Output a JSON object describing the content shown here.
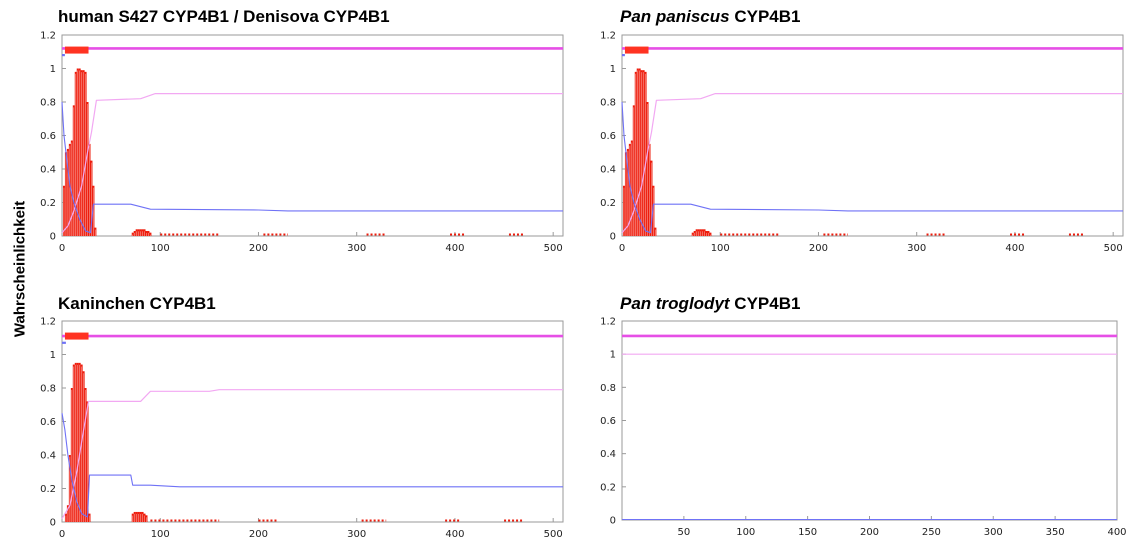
{
  "ylabel": "Wahrscheinlichkeit",
  "colors": {
    "frame": "#9a9a9a",
    "bars": "#ee1c0c",
    "bar_stripe": "#ffffff",
    "marker": "#ff3322",
    "blue": "#6f72f6",
    "pink_thick": "#e64fe6",
    "pink_thin": "#f2a8f2"
  },
  "chart_data": [
    {
      "type": "line",
      "title_main": "human S427 CYP4B1 / Denisova CYP4B1",
      "title_italic": "",
      "title_suffix": "",
      "xlim": [
        0,
        510
      ],
      "ylim": [
        0,
        1.2
      ],
      "xticks": [
        "0",
        "100",
        "200",
        "300",
        "400",
        "500"
      ],
      "yticks": [
        "0",
        "0.2",
        "0.4",
        "0.6",
        "0.8",
        "1",
        "1.2"
      ],
      "marker_bar": {
        "y": 1.11,
        "x": [
          3,
          27
        ]
      },
      "series": [
        {
          "style": "thick_pink",
          "points": [
            [
              0,
              1.12
            ],
            [
              510,
              1.12
            ]
          ]
        },
        {
          "style": "thin_pink",
          "points": [
            [
              0,
              0.02
            ],
            [
              6,
              0.06
            ],
            [
              12,
              0.15
            ],
            [
              20,
              0.3
            ],
            [
              26,
              0.5
            ],
            [
              30,
              0.62
            ],
            [
              35,
              0.81
            ],
            [
              80,
              0.82
            ],
            [
              95,
              0.85
            ],
            [
              510,
              0.85
            ]
          ]
        },
        {
          "style": "blue",
          "points": [
            [
              0,
              0.8
            ],
            [
              2,
              0.6
            ],
            [
              5,
              0.45
            ],
            [
              8,
              0.3
            ],
            [
              12,
              0.2
            ],
            [
              18,
              0.1
            ],
            [
              24,
              0.03
            ],
            [
              29,
              0.02
            ],
            [
              32,
              0.19
            ],
            [
              70,
              0.19
            ],
            [
              90,
              0.16
            ],
            [
              200,
              0.155
            ],
            [
              230,
              0.15
            ],
            [
              510,
              0.15
            ]
          ]
        },
        {
          "style": "blue_short",
          "points": [
            [
              0,
              1.08
            ],
            [
              3,
              1.08
            ]
          ]
        }
      ],
      "bars": {
        "x": [
          2,
          4,
          6,
          8,
          10,
          12,
          14,
          16,
          18,
          20,
          22,
          24,
          26,
          28,
          30,
          32,
          34,
          72,
          74,
          76,
          78,
          80,
          82,
          84,
          86,
          88,
          90
        ],
        "values": [
          0.3,
          0.5,
          0.52,
          0.55,
          0.57,
          0.78,
          0.98,
          1.0,
          1.0,
          0.99,
          0.99,
          0.98,
          0.8,
          0.55,
          0.45,
          0.3,
          0.05,
          0.02,
          0.03,
          0.04,
          0.04,
          0.04,
          0.04,
          0.04,
          0.03,
          0.03,
          0.02
        ]
      },
      "dashes": [
        [
          100,
          160
        ],
        [
          205,
          230
        ],
        [
          310,
          330
        ],
        [
          395,
          410
        ],
        [
          455,
          470
        ]
      ]
    },
    {
      "type": "line",
      "title_main": "",
      "title_italic": "Pan paniscus",
      "title_suffix": " CYP4B1",
      "xlim": [
        0,
        510
      ],
      "ylim": [
        0,
        1.2
      ],
      "xticks": [
        "0",
        "100",
        "200",
        "300",
        "400",
        "500"
      ],
      "yticks": [
        "0",
        "0.2",
        "0.4",
        "0.6",
        "0.8",
        "1",
        "1.2"
      ],
      "marker_bar": {
        "y": 1.11,
        "x": [
          3,
          27
        ]
      },
      "series": [
        {
          "style": "thick_pink",
          "points": [
            [
              0,
              1.12
            ],
            [
              510,
              1.12
            ]
          ]
        },
        {
          "style": "thin_pink",
          "points": [
            [
              0,
              0.02
            ],
            [
              6,
              0.06
            ],
            [
              12,
              0.15
            ],
            [
              20,
              0.3
            ],
            [
              26,
              0.5
            ],
            [
              30,
              0.62
            ],
            [
              35,
              0.81
            ],
            [
              80,
              0.82
            ],
            [
              95,
              0.85
            ],
            [
              510,
              0.85
            ]
          ]
        },
        {
          "style": "blue",
          "points": [
            [
              0,
              0.8
            ],
            [
              2,
              0.6
            ],
            [
              5,
              0.45
            ],
            [
              8,
              0.3
            ],
            [
              12,
              0.2
            ],
            [
              18,
              0.1
            ],
            [
              24,
              0.03
            ],
            [
              29,
              0.02
            ],
            [
              32,
              0.19
            ],
            [
              70,
              0.19
            ],
            [
              90,
              0.16
            ],
            [
              200,
              0.155
            ],
            [
              230,
              0.15
            ],
            [
              510,
              0.15
            ]
          ]
        },
        {
          "style": "blue_short",
          "points": [
            [
              0,
              1.08
            ],
            [
              3,
              1.08
            ]
          ]
        }
      ],
      "bars": {
        "x": [
          2,
          4,
          6,
          8,
          10,
          12,
          14,
          16,
          18,
          20,
          22,
          24,
          26,
          28,
          30,
          32,
          34,
          72,
          74,
          76,
          78,
          80,
          82,
          84,
          86,
          88,
          90
        ],
        "values": [
          0.3,
          0.5,
          0.52,
          0.55,
          0.57,
          0.78,
          0.98,
          1.0,
          1.0,
          0.99,
          0.99,
          0.98,
          0.8,
          0.55,
          0.45,
          0.3,
          0.05,
          0.02,
          0.03,
          0.04,
          0.04,
          0.04,
          0.04,
          0.04,
          0.03,
          0.03,
          0.02
        ]
      },
      "dashes": [
        [
          100,
          160
        ],
        [
          205,
          230
        ],
        [
          310,
          330
        ],
        [
          395,
          410
        ],
        [
          455,
          470
        ]
      ]
    },
    {
      "type": "line",
      "title_main": "Kaninchen CYP4B1",
      "title_italic": "",
      "title_suffix": "",
      "xlim": [
        0,
        510
      ],
      "ylim": [
        0,
        1.2
      ],
      "xticks": [
        "0",
        "100",
        "200",
        "300",
        "400",
        "500"
      ],
      "yticks": [
        "0",
        "0.2",
        "0.4",
        "0.6",
        "0.8",
        "1",
        "1.2"
      ],
      "marker_bar": {
        "y": 1.11,
        "x": [
          3,
          27
        ]
      },
      "series": [
        {
          "style": "thick_pink",
          "points": [
            [
              0,
              1.11
            ],
            [
              510,
              1.11
            ]
          ]
        },
        {
          "style": "thin_pink",
          "points": [
            [
              0,
              0.02
            ],
            [
              8,
              0.1
            ],
            [
              15,
              0.3
            ],
            [
              22,
              0.55
            ],
            [
              27,
              0.72
            ],
            [
              80,
              0.72
            ],
            [
              90,
              0.78
            ],
            [
              150,
              0.78
            ],
            [
              160,
              0.79
            ],
            [
              510,
              0.79
            ]
          ]
        },
        {
          "style": "blue",
          "points": [
            [
              0,
              0.65
            ],
            [
              3,
              0.55
            ],
            [
              6,
              0.4
            ],
            [
              10,
              0.25
            ],
            [
              15,
              0.12
            ],
            [
              20,
              0.05
            ],
            [
              26,
              0.03
            ],
            [
              28,
              0.28
            ],
            [
              70,
              0.28
            ],
            [
              72,
              0.22
            ],
            [
              90,
              0.22
            ],
            [
              120,
              0.21
            ],
            [
              510,
              0.21
            ]
          ]
        },
        {
          "style": "blue_short",
          "points": [
            [
              0,
              1.07
            ],
            [
              4,
              1.07
            ]
          ]
        }
      ],
      "bars": {
        "x": [
          4,
          6,
          8,
          10,
          12,
          14,
          16,
          18,
          20,
          22,
          24,
          26,
          28,
          72,
          74,
          76,
          78,
          80,
          82,
          84,
          86
        ],
        "values": [
          0.05,
          0.1,
          0.4,
          0.8,
          0.94,
          0.95,
          0.95,
          0.95,
          0.94,
          0.9,
          0.8,
          0.72,
          0.05,
          0.05,
          0.06,
          0.06,
          0.06,
          0.06,
          0.06,
          0.05,
          0.04
        ]
      },
      "dashes": [
        [
          90,
          160
        ],
        [
          200,
          220
        ],
        [
          305,
          330
        ],
        [
          390,
          405
        ],
        [
          450,
          470
        ]
      ]
    },
    {
      "type": "line",
      "title_main": "",
      "title_italic": "Pan troglodyt",
      "title_suffix": " CYP4B1",
      "xlim": [
        0,
        400
      ],
      "ylim": [
        0,
        1.2
      ],
      "xticks": [
        "50",
        "100",
        "150",
        "200",
        "250",
        "300",
        "350",
        "400"
      ],
      "yticks": [
        "0",
        "0.2",
        "0.4",
        "0.6",
        "0.8",
        "1",
        "1.2"
      ],
      "marker_bar": null,
      "series": [
        {
          "style": "thick_pink",
          "points": [
            [
              0,
              1.11
            ],
            [
              400,
              1.11
            ]
          ]
        },
        {
          "style": "thin_pink",
          "points": [
            [
              0,
              1.0
            ],
            [
              400,
              1.0
            ]
          ]
        },
        {
          "style": "blue",
          "points": [
            [
              0,
              0.003
            ],
            [
              400,
              0.003
            ]
          ]
        }
      ],
      "bars": {
        "x": [],
        "values": []
      },
      "dashes": []
    }
  ]
}
